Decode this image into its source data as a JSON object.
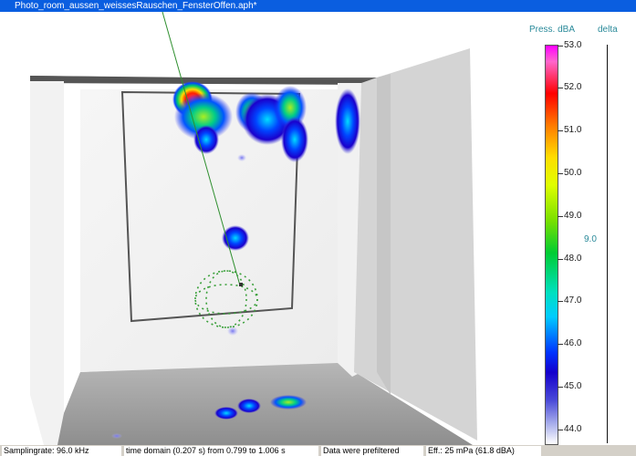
{
  "window": {
    "title": "Photo_room_aussen_weissesRauschen_FensterOffen.aph*"
  },
  "color_scale": {
    "header_pressure": "Press. dBA",
    "header_delta": "delta",
    "delta_value": "9.0",
    "tick_labels": [
      "53.0",
      "52.0",
      "51.0",
      "50.0",
      "49.0",
      "48.0",
      "47.0",
      "46.0",
      "45.0",
      "44.0"
    ]
  },
  "status_bar": {
    "sampling": "Samplingrate: 96.0 kHz",
    "time_domain": "time domain (0.207 s) from 0.799 to 1.006 s",
    "filter": "Data were prefiltered",
    "effective": "Eff.: 25 mPa (61.8 dBA)"
  },
  "colors": {
    "title_bar": "#0a5ee0",
    "scale_text": "#2a8a9a",
    "status_bar": "#d4d0c8"
  },
  "icons": {
    "microphone_array": "spherical-microphone-array-icon"
  }
}
